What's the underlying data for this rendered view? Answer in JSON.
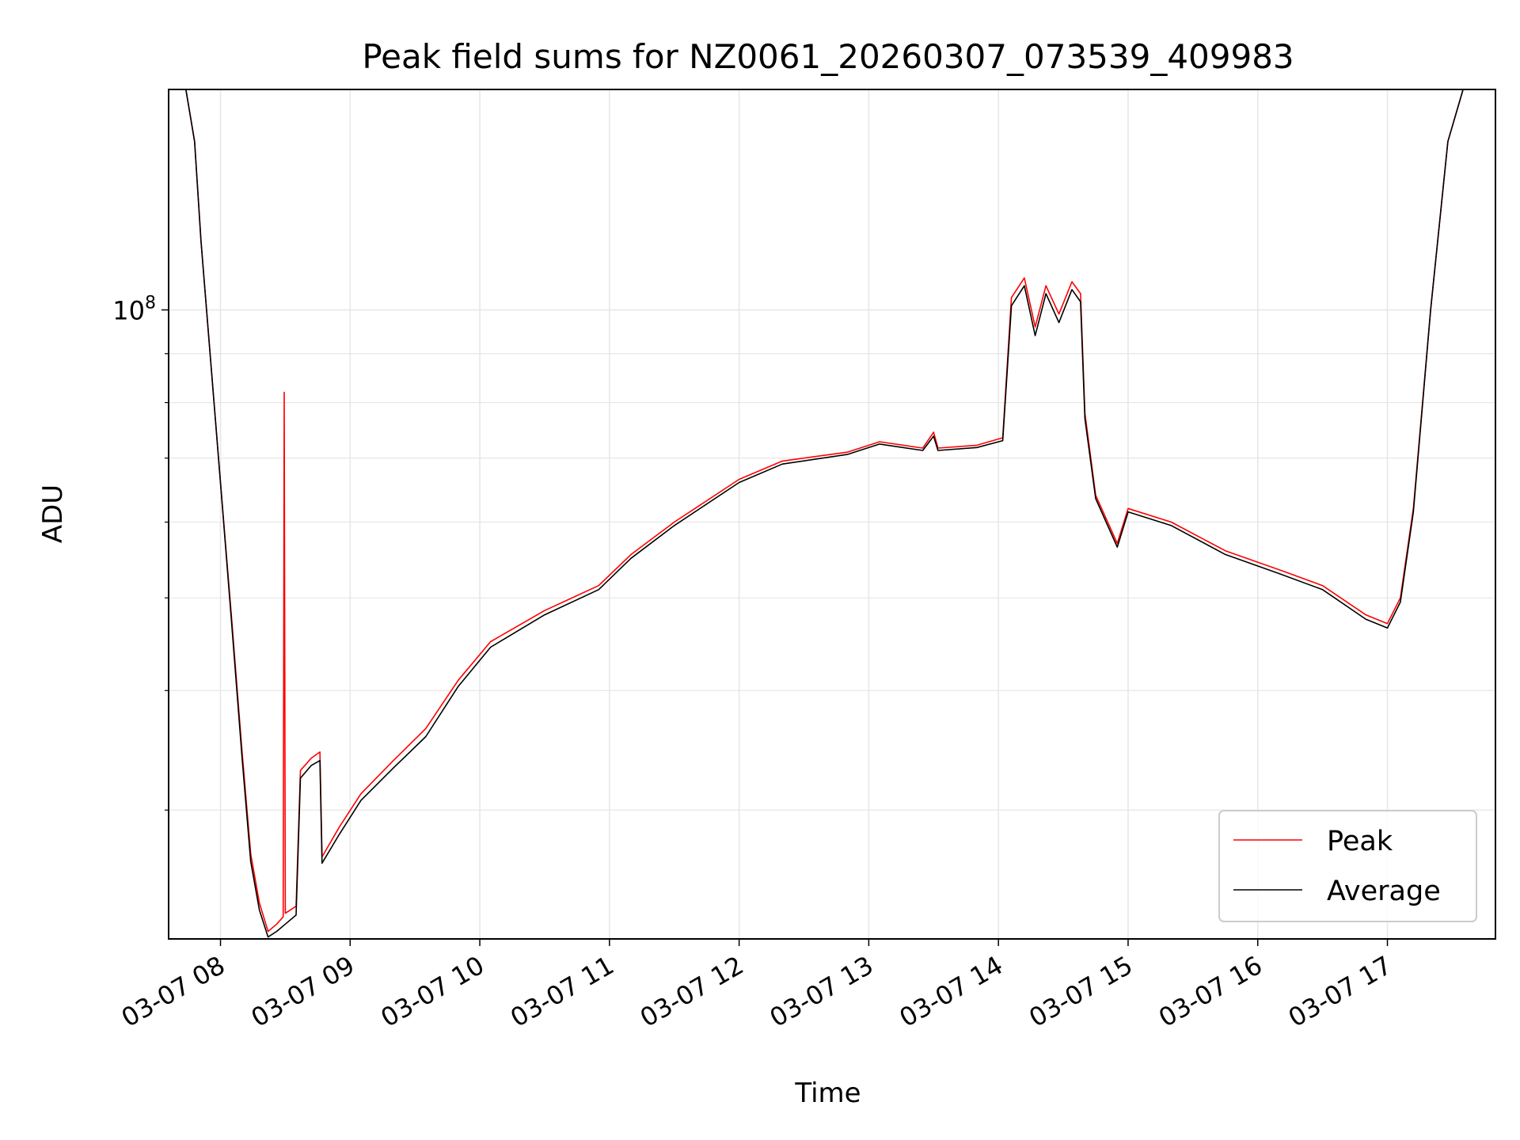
{
  "chart_data": {
    "type": "line",
    "title": "Peak field sums for NZ0061_20260307_073539_409983",
    "xlabel": "Time",
    "ylabel": "ADU",
    "y_scale": "log",
    "ylim": [
      22000000,
      170000000
    ],
    "xlim": [
      "2026-03-07 07:36",
      "2026-03-07 17:50"
    ],
    "grid": true,
    "legend_position": "bottom-right",
    "x_ticks": [
      "03-07 08",
      "03-07 09",
      "03-07 10",
      "03-07 11",
      "03-07 12",
      "03-07 13",
      "03-07 14",
      "03-07 15",
      "03-07 16",
      "03-07 17"
    ],
    "y_tick_label": {
      "base": "10",
      "exponent": "8"
    },
    "series": [
      {
        "name": "Peak",
        "color": "#ff0000",
        "points": [
          [
            "2026-03-07 07:44",
            170000000
          ],
          [
            "2026-03-07 07:48",
            150000000
          ],
          [
            "2026-03-07 07:51",
            118000000
          ],
          [
            "2026-03-07 07:55",
            91000000
          ],
          [
            "2026-03-07 08:00",
            66000000
          ],
          [
            "2026-03-07 08:05",
            48000000
          ],
          [
            "2026-03-07 08:10",
            34500000
          ],
          [
            "2026-03-07 08:14",
            27000000
          ],
          [
            "2026-03-07 08:18",
            24000000
          ],
          [
            "2026-03-07 08:22",
            22400000
          ],
          [
            "2026-03-07 08:26",
            22800000
          ],
          [
            "2026-03-07 08:29",
            23200000
          ],
          [
            "2026-03-07 08:29:30",
            82000000
          ],
          [
            "2026-03-07 08:30",
            23400000
          ],
          [
            "2026-03-07 08:35",
            23800000
          ],
          [
            "2026-03-07 08:37",
            33000000
          ],
          [
            "2026-03-07 08:42",
            34000000
          ],
          [
            "2026-03-07 08:46",
            34500000
          ],
          [
            "2026-03-07 08:47",
            26800000
          ],
          [
            "2026-03-07 08:55",
            28800000
          ],
          [
            "2026-03-07 09:05",
            31200000
          ],
          [
            "2026-03-07 09:20",
            33800000
          ],
          [
            "2026-03-07 09:35",
            36500000
          ],
          [
            "2026-03-07 09:50",
            41000000
          ],
          [
            "2026-03-07 10:05",
            45000000
          ],
          [
            "2026-03-07 10:30",
            48500000
          ],
          [
            "2026-03-07 10:55",
            51500000
          ],
          [
            "2026-03-07 11:10",
            55500000
          ],
          [
            "2026-03-07 11:30",
            60000000
          ],
          [
            "2026-03-07 12:00",
            66500000
          ],
          [
            "2026-03-07 12:20",
            69500000
          ],
          [
            "2026-03-07 12:50",
            71000000
          ],
          [
            "2026-03-07 13:05",
            72800000
          ],
          [
            "2026-03-07 13:25",
            71700000
          ],
          [
            "2026-03-07 13:30",
            74500000
          ],
          [
            "2026-03-07 13:32",
            71700000
          ],
          [
            "2026-03-07 13:50",
            72200000
          ],
          [
            "2026-03-07 14:02",
            73500000
          ],
          [
            "2026-03-07 14:06",
            103000000
          ],
          [
            "2026-03-07 14:12",
            108000000
          ],
          [
            "2026-03-07 14:17",
            96000000
          ],
          [
            "2026-03-07 14:22",
            106000000
          ],
          [
            "2026-03-07 14:28",
            99000000
          ],
          [
            "2026-03-07 14:34",
            107000000
          ],
          [
            "2026-03-07 14:38",
            104000000
          ],
          [
            "2026-03-07 14:40",
            78000000
          ],
          [
            "2026-03-07 14:45",
            64000000
          ],
          [
            "2026-03-07 14:55",
            57000000
          ],
          [
            "2026-03-07 15:00",
            62000000
          ],
          [
            "2026-03-07 15:20",
            60000000
          ],
          [
            "2026-03-07 15:45",
            56000000
          ],
          [
            "2026-03-07 16:10",
            53500000
          ],
          [
            "2026-03-07 16:30",
            51500000
          ],
          [
            "2026-03-07 16:50",
            48000000
          ],
          [
            "2026-03-07 17:00",
            47000000
          ],
          [
            "2026-03-07 17:06",
            50000000
          ],
          [
            "2026-03-07 17:12",
            62000000
          ],
          [
            "2026-03-07 17:20",
            100000000
          ],
          [
            "2026-03-07 17:28",
            150000000
          ],
          [
            "2026-03-07 17:35",
            170000000
          ]
        ]
      },
      {
        "name": "Average",
        "color": "#000000",
        "points": [
          [
            "2026-03-07 07:44",
            170000000
          ],
          [
            "2026-03-07 07:48",
            150000000
          ],
          [
            "2026-03-07 07:51",
            118000000
          ],
          [
            "2026-03-07 07:55",
            91000000
          ],
          [
            "2026-03-07 08:00",
            66000000
          ],
          [
            "2026-03-07 08:05",
            47500000
          ],
          [
            "2026-03-07 08:10",
            34000000
          ],
          [
            "2026-03-07 08:14",
            26500000
          ],
          [
            "2026-03-07 08:18",
            23600000
          ],
          [
            "2026-03-07 08:22",
            22100000
          ],
          [
            "2026-03-07 08:26",
            22400000
          ],
          [
            "2026-03-07 08:30",
            22800000
          ],
          [
            "2026-03-07 08:35",
            23300000
          ],
          [
            "2026-03-07 08:37",
            32400000
          ],
          [
            "2026-03-07 08:42",
            33400000
          ],
          [
            "2026-03-07 08:46",
            33800000
          ],
          [
            "2026-03-07 08:47",
            26400000
          ],
          [
            "2026-03-07 08:55",
            28300000
          ],
          [
            "2026-03-07 09:05",
            30700000
          ],
          [
            "2026-03-07 09:20",
            33200000
          ],
          [
            "2026-03-07 09:35",
            35800000
          ],
          [
            "2026-03-07 09:50",
            40400000
          ],
          [
            "2026-03-07 10:05",
            44400000
          ],
          [
            "2026-03-07 10:30",
            48000000
          ],
          [
            "2026-03-07 10:55",
            51000000
          ],
          [
            "2026-03-07 11:10",
            55000000
          ],
          [
            "2026-03-07 11:30",
            59500000
          ],
          [
            "2026-03-07 12:00",
            66000000
          ],
          [
            "2026-03-07 12:20",
            69000000
          ],
          [
            "2026-03-07 12:50",
            70600000
          ],
          [
            "2026-03-07 13:05",
            72400000
          ],
          [
            "2026-03-07 13:25",
            71300000
          ],
          [
            "2026-03-07 13:30",
            73800000
          ],
          [
            "2026-03-07 13:32",
            71300000
          ],
          [
            "2026-03-07 13:50",
            71800000
          ],
          [
            "2026-03-07 14:02",
            73000000
          ],
          [
            "2026-03-07 14:06",
            101000000
          ],
          [
            "2026-03-07 14:12",
            106000000
          ],
          [
            "2026-03-07 14:17",
            94000000
          ],
          [
            "2026-03-07 14:22",
            104000000
          ],
          [
            "2026-03-07 14:28",
            97000000
          ],
          [
            "2026-03-07 14:34",
            105000000
          ],
          [
            "2026-03-07 14:38",
            102000000
          ],
          [
            "2026-03-07 14:40",
            77000000
          ],
          [
            "2026-03-07 14:45",
            63500000
          ],
          [
            "2026-03-07 14:55",
            56500000
          ],
          [
            "2026-03-07 15:00",
            61500000
          ],
          [
            "2026-03-07 15:20",
            59500000
          ],
          [
            "2026-03-07 15:45",
            55500000
          ],
          [
            "2026-03-07 16:10",
            53000000
          ],
          [
            "2026-03-07 16:30",
            51000000
          ],
          [
            "2026-03-07 16:50",
            47500000
          ],
          [
            "2026-03-07 17:00",
            46500000
          ],
          [
            "2026-03-07 17:06",
            49500000
          ],
          [
            "2026-03-07 17:12",
            61500000
          ],
          [
            "2026-03-07 17:20",
            100000000
          ],
          [
            "2026-03-07 17:28",
            150000000
          ],
          [
            "2026-03-07 17:35",
            170000000
          ]
        ]
      }
    ]
  }
}
